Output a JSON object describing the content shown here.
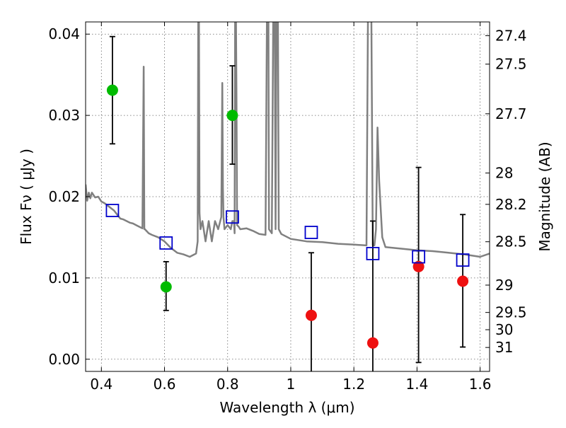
{
  "chart_data": {
    "type": "scatter",
    "xlabel": "Wavelength  λ (μm)",
    "ylabel": "Flux  Fν  ( μJy )",
    "y2label": "Magnitude (AB)",
    "xlim": [
      0.35,
      1.63
    ],
    "ylim": [
      -0.0015,
      0.0415
    ],
    "grid": true,
    "x_ticks": [
      0.4,
      0.6,
      0.8,
      1.0,
      1.2,
      1.4,
      1.6
    ],
    "x_tick_labels": [
      "0.4",
      "0.6",
      "0.8",
      "1",
      "1.2",
      "1.4",
      "1.6"
    ],
    "y_ticks": [
      0.0,
      0.01,
      0.02,
      0.03,
      0.04
    ],
    "y_tick_labels": [
      "0.00",
      "0.01",
      "0.02",
      "0.03",
      "0.04"
    ],
    "magnitude_ticks": [
      "27.4",
      "27.5",
      "27.7",
      "28",
      "28.2",
      "28.5",
      "29",
      "29.5",
      "30",
      "31"
    ],
    "colors": {
      "sed_line": "#808080",
      "green_points": "#00bb00",
      "red_points": "#ee1111",
      "model_squares": "#0000cc",
      "error_bars": "#000000"
    },
    "sed_model": {
      "style": "solid",
      "color": "#808080",
      "x": [
        0.35,
        0.355,
        0.36,
        0.365,
        0.37,
        0.38,
        0.39,
        0.4,
        0.41,
        0.42,
        0.43,
        0.44,
        0.45,
        0.46,
        0.47,
        0.48,
        0.49,
        0.5,
        0.51,
        0.52,
        0.53,
        0.534,
        0.536,
        0.538,
        0.54,
        0.55,
        0.56,
        0.58,
        0.6,
        0.62,
        0.64,
        0.66,
        0.68,
        0.7,
        0.705,
        0.707,
        0.709,
        0.711,
        0.714,
        0.72,
        0.73,
        0.74,
        0.75,
        0.76,
        0.77,
        0.78,
        0.783,
        0.785,
        0.787,
        0.79,
        0.8,
        0.81,
        0.815,
        0.82,
        0.822,
        0.824,
        0.826,
        0.828,
        0.83,
        0.835,
        0.84,
        0.86,
        0.88,
        0.9,
        0.92,
        0.925,
        0.927,
        0.929,
        0.931,
        0.94,
        0.945,
        0.947,
        0.949,
        0.952,
        0.955,
        0.957,
        0.959,
        0.962,
        0.97,
        1.0,
        1.05,
        1.1,
        1.15,
        1.2,
        1.24,
        1.245,
        1.25,
        1.255,
        1.26,
        1.265,
        1.27,
        1.275,
        1.28,
        1.29,
        1.3,
        1.35,
        1.4,
        1.45,
        1.5,
        1.55,
        1.6,
        1.63
      ],
      "y": [
        0.0215,
        0.0195,
        0.0205,
        0.0198,
        0.0205,
        0.0199,
        0.02,
        0.0194,
        0.0192,
        0.0189,
        0.0186,
        0.0183,
        0.0178,
        0.0173,
        0.0172,
        0.017,
        0.0168,
        0.0167,
        0.0165,
        0.0163,
        0.0161,
        0.036,
        0.016,
        0.016,
        0.0159,
        0.0155,
        0.0153,
        0.015,
        0.0145,
        0.0137,
        0.0131,
        0.0129,
        0.0126,
        0.013,
        0.0145,
        0.045,
        0.045,
        0.018,
        0.016,
        0.017,
        0.0145,
        0.017,
        0.0145,
        0.017,
        0.016,
        0.0175,
        0.034,
        0.021,
        0.0175,
        0.016,
        0.0165,
        0.016,
        0.017,
        0.017,
        0.0155,
        0.045,
        0.045,
        0.033,
        0.0165,
        0.0163,
        0.016,
        0.0161,
        0.0158,
        0.0154,
        0.0153,
        0.045,
        0.045,
        0.045,
        0.016,
        0.0155,
        0.045,
        0.045,
        0.045,
        0.016,
        0.045,
        0.045,
        0.045,
        0.016,
        0.0154,
        0.0148,
        0.0145,
        0.0144,
        0.0142,
        0.0141,
        0.014,
        0.045,
        0.045,
        0.045,
        0.014,
        0.014,
        0.016,
        0.0285,
        0.022,
        0.015,
        0.0138,
        0.0136,
        0.0134,
        0.0133,
        0.0131,
        0.0129,
        0.0126,
        0.013
      ]
    },
    "series": [
      {
        "marker": "circle",
        "color": "#00bb00",
        "x": [
          0.435,
          0.605,
          0.815
        ],
        "y": [
          0.0331,
          0.0089,
          0.03
        ],
        "yerr_low": [
          0.0265,
          0.006,
          0.024
        ],
        "yerr_high": [
          0.0397,
          0.012,
          0.0361
        ]
      },
      {
        "marker": "circle",
        "color": "#ee1111",
        "x": [
          1.065,
          1.26,
          1.405,
          1.545
        ],
        "y": [
          0.0054,
          0.002,
          0.0114,
          0.0096
        ],
        "yerr_low": [
          -0.002,
          -0.002,
          -0.0004,
          0.0015
        ],
        "yerr_high": [
          0.0131,
          0.017,
          0.0236,
          0.0178
        ]
      },
      {
        "marker": "open-square",
        "color": "#0000cc",
        "x": [
          0.435,
          0.605,
          0.815,
          1.065,
          1.26,
          1.405,
          1.545
        ],
        "y": [
          0.0183,
          0.0143,
          0.0175,
          0.0156,
          0.013,
          0.0126,
          0.0122
        ]
      }
    ]
  }
}
